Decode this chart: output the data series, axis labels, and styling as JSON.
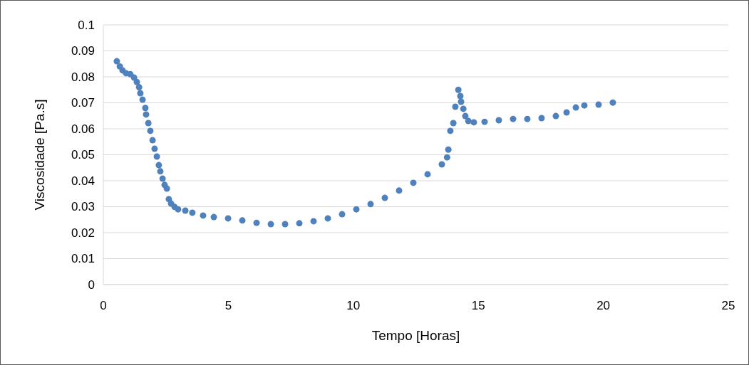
{
  "chart_data": {
    "type": "scatter",
    "xlabel": "Tempo [Horas]",
    "ylabel": "Viscosidade [Pa.s]",
    "xlim": [
      0,
      25
    ],
    "xticks": [
      0,
      5,
      10,
      15,
      20,
      25
    ],
    "ylim": [
      0,
      0.1
    ],
    "yticks": [
      0,
      0.01,
      0.02,
      0.03,
      0.04,
      0.05,
      0.06,
      0.07,
      0.08,
      0.09,
      0.1
    ],
    "grid": "y",
    "marker": "circle",
    "series": [
      {
        "color": "#4f81bd",
        "x": [
          0.54,
          0.66,
          0.77,
          0.91,
          1.08,
          1.23,
          1.34,
          1.43,
          1.48,
          1.57,
          1.68,
          1.71,
          1.8,
          1.88,
          1.97,
          2.05,
          2.14,
          2.22,
          2.28,
          2.37,
          2.45,
          2.54,
          2.62,
          2.71,
          2.85,
          2.99,
          3.28,
          3.56,
          3.99,
          4.42,
          4.99,
          5.56,
          6.13,
          6.7,
          7.27,
          7.84,
          8.41,
          8.98,
          9.55,
          10.12,
          10.69,
          11.26,
          11.83,
          12.4,
          12.97,
          13.54,
          13.75,
          13.8,
          13.88,
          14.0,
          14.08,
          14.2,
          14.28,
          14.31,
          14.4,
          14.48,
          14.6,
          14.82,
          15.25,
          15.82,
          16.39,
          16.96,
          17.53,
          18.1,
          18.53,
          18.9,
          19.24,
          19.81,
          20.38
        ],
        "values": [
          0.086,
          0.084,
          0.0825,
          0.0814,
          0.081,
          0.0797,
          0.078,
          0.076,
          0.0737,
          0.0712,
          0.068,
          0.0655,
          0.0622,
          0.0592,
          0.0556,
          0.0523,
          0.0493,
          0.046,
          0.0436,
          0.0408,
          0.0384,
          0.037,
          0.0329,
          0.0312,
          0.0299,
          0.029,
          0.0285,
          0.0277,
          0.0266,
          0.026,
          0.0255,
          0.0247,
          0.0238,
          0.0233,
          0.0233,
          0.0236,
          0.0244,
          0.0255,
          0.0271,
          0.029,
          0.031,
          0.0334,
          0.0362,
          0.0392,
          0.0425,
          0.0463,
          0.049,
          0.052,
          0.0592,
          0.0622,
          0.0685,
          0.075,
          0.0726,
          0.0704,
          0.0677,
          0.0649,
          0.063,
          0.0625,
          0.0627,
          0.0633,
          0.0638,
          0.0638,
          0.0641,
          0.0649,
          0.0663,
          0.0682,
          0.069,
          0.0693,
          0.0701
        ]
      }
    ]
  }
}
